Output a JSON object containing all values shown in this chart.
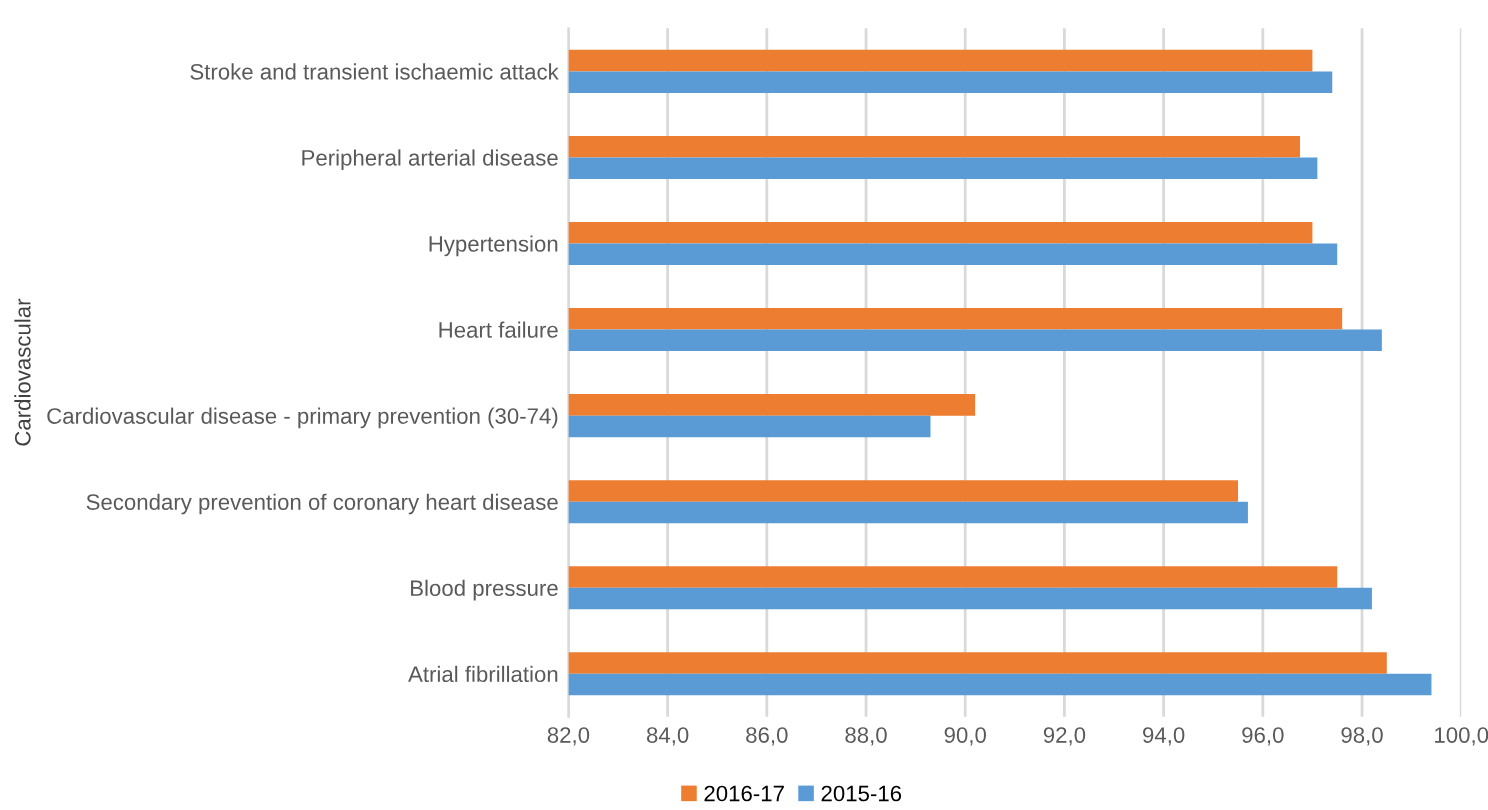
{
  "chart_data": {
    "type": "bar",
    "orientation": "horizontal",
    "ylabel": "Cardiovascular",
    "categories": [
      "Stroke and transient ischaemic attack",
      "Peripheral arterial disease",
      "Hypertension",
      "Heart failure",
      "Cardiovascular disease - primary prevention (30-74)",
      "Secondary prevention of coronary heart disease",
      "Blood pressure",
      "Atrial fibrillation"
    ],
    "series": [
      {
        "name": "2016-17",
        "color": "#ed7d31",
        "values": [
          97.0,
          96.75,
          97.0,
          97.6,
          90.2,
          95.5,
          97.5,
          98.5
        ]
      },
      {
        "name": "2015-16",
        "color": "#5b9bd5",
        "values": [
          97.4,
          97.1,
          97.5,
          98.4,
          89.3,
          95.7,
          98.2,
          99.4
        ]
      }
    ],
    "xlim": [
      82,
      100
    ],
    "xticks": [
      {
        "value": 82,
        "label": "82,0"
      },
      {
        "value": 84,
        "label": "84,0"
      },
      {
        "value": 86,
        "label": "86,0"
      },
      {
        "value": 88,
        "label": "88,0"
      },
      {
        "value": 90,
        "label": "90,0"
      },
      {
        "value": 92,
        "label": "92,0"
      },
      {
        "value": 94,
        "label": "94,0"
      },
      {
        "value": 96,
        "label": "96,0"
      },
      {
        "value": 98,
        "label": "98,0"
      },
      {
        "value": 100,
        "label": "100,0"
      }
    ],
    "grid": "x",
    "legend": "bottom"
  }
}
